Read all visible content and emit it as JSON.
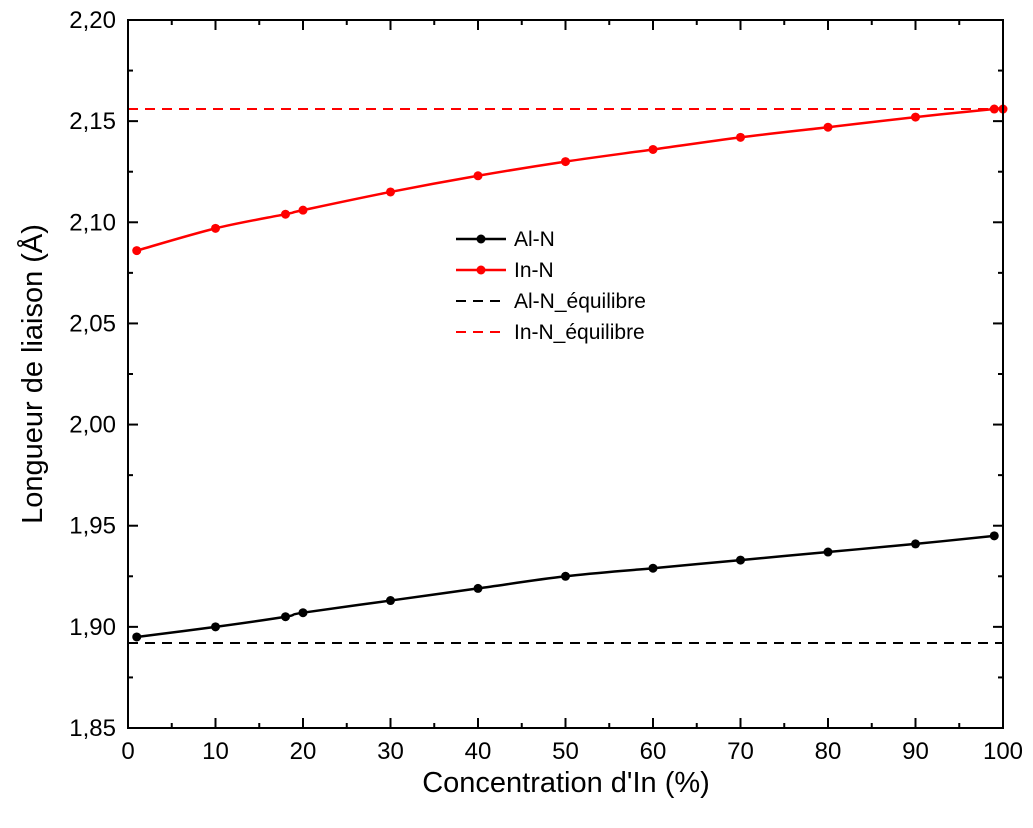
{
  "chart_data": {
    "type": "line",
    "xlabel": "Concentration d'In (%)",
    "ylabel": "Longueur de liaison (Å)",
    "xlim": [
      0,
      100
    ],
    "ylim": [
      1.85,
      2.2
    ],
    "x_ticks": [
      0,
      10,
      20,
      30,
      40,
      50,
      60,
      70,
      80,
      90,
      100
    ],
    "x_tick_labels": [
      "0",
      "10",
      "20",
      "30",
      "40",
      "50",
      "60",
      "70",
      "80",
      "90",
      "100"
    ],
    "y_ticks": [
      1.85,
      1.9,
      1.95,
      2.0,
      2.05,
      2.1,
      2.15,
      2.2
    ],
    "y_tick_labels": [
      "1,85",
      "1,90",
      "1,95",
      "2,00",
      "2,05",
      "2,10",
      "2,15",
      "2,20"
    ],
    "grid": false,
    "legend_position": "center",
    "series": [
      {
        "name": "Al-N",
        "style": "solid-line-markers",
        "color": "#000000",
        "x": [
          1,
          10,
          18,
          20,
          30,
          40,
          50,
          60,
          70,
          80,
          90,
          99
        ],
        "y": [
          1.895,
          1.9,
          1.905,
          1.907,
          1.913,
          1.919,
          1.925,
          1.929,
          1.933,
          1.937,
          1.941,
          1.945
        ]
      },
      {
        "name": "In-N",
        "style": "solid-line-markers",
        "color": "#ff0000",
        "x": [
          1,
          10,
          18,
          20,
          30,
          40,
          50,
          60,
          70,
          80,
          90,
          99,
          100
        ],
        "y": [
          2.086,
          2.097,
          2.104,
          2.106,
          2.115,
          2.123,
          2.13,
          2.136,
          2.142,
          2.147,
          2.152,
          2.156,
          2.156
        ]
      },
      {
        "name": "Al-N_équilibre",
        "style": "dashed-line",
        "color": "#000000",
        "x": [
          0,
          100
        ],
        "y": [
          1.892,
          1.892
        ]
      },
      {
        "name": "In-N_équilibre",
        "style": "dashed-line",
        "color": "#ff0000",
        "x": [
          0,
          100
        ],
        "y": [
          2.156,
          2.156
        ]
      }
    ]
  }
}
